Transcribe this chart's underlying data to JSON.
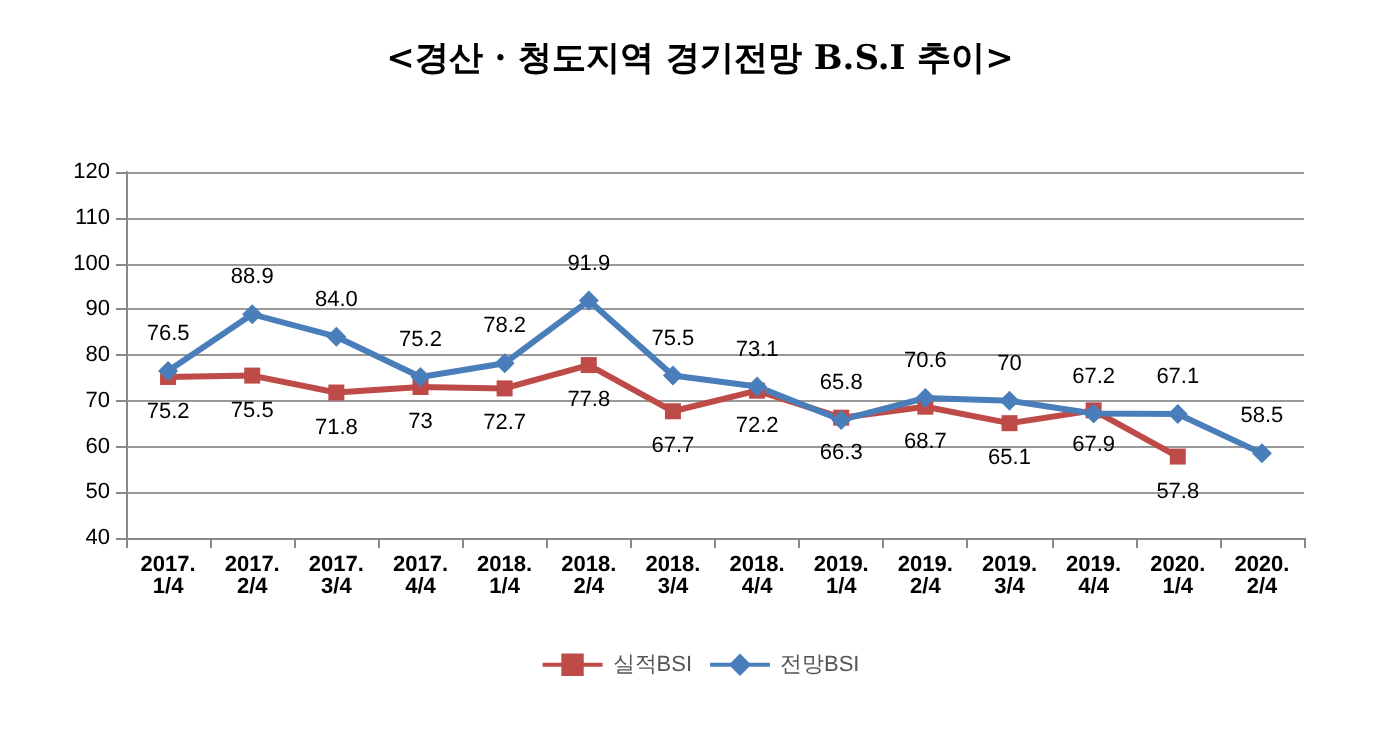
{
  "chart_data": {
    "type": "line",
    "title": "<경산 · 청도지역 경기전망 B.S.I 추이>",
    "categories": [
      "2017.\n1/4",
      "2017.\n2/4",
      "2017.\n3/4",
      "2017.\n4/4",
      "2018.\n1/4",
      "2018.\n2/4",
      "2018.\n3/4",
      "2018.\n4/4",
      "2019.\n1/4",
      "2019.\n2/4",
      "2019.\n3/4",
      "2019.\n4/4",
      "2020.\n1/4",
      "2020.\n2/4"
    ],
    "series": [
      {
        "name": "실적BSI",
        "color": "#be4b48",
        "marker": "square",
        "values": [
          75.2,
          75.5,
          71.8,
          73,
          72.7,
          77.8,
          67.7,
          72.2,
          66.3,
          68.7,
          65.1,
          67.9,
          57.8,
          null
        ],
        "value_labels": [
          "75.2",
          "75.5",
          "71.8",
          "73",
          "72.7",
          "77.8",
          "67.7",
          "72.2",
          "66.3",
          "68.7",
          "65.1",
          "67.9",
          "57.8",
          null
        ]
      },
      {
        "name": "전망BSI",
        "color": "#4a7ebb",
        "marker": "diamond",
        "values": [
          76.5,
          88.9,
          84.0,
          75.2,
          78.2,
          91.9,
          75.5,
          73.1,
          65.8,
          70.6,
          70,
          67.2,
          67.1,
          58.5
        ],
        "value_labels": [
          "76.5",
          "88.9",
          "84.0",
          "75.2",
          "78.2",
          "91.9",
          "75.5",
          "73.1",
          "65.8",
          "70.6",
          "70",
          "67.2",
          "67.1",
          "58.5"
        ]
      }
    ],
    "ylim": [
      40,
      120
    ],
    "yticks": [
      40,
      50,
      60,
      70,
      80,
      90,
      100,
      110,
      120
    ],
    "grid": "y",
    "legend": "bottom"
  }
}
